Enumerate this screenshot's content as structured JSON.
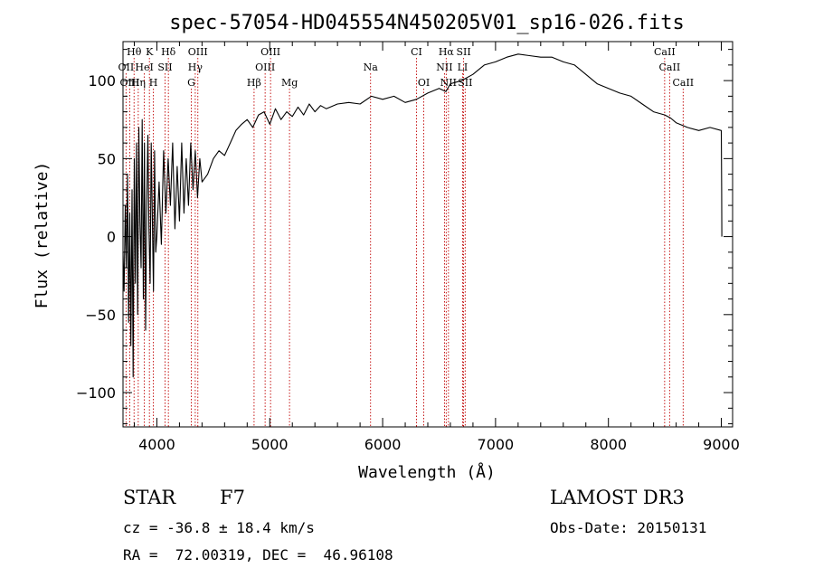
{
  "chart_data": {
    "type": "line",
    "title": "spec-57054-HD045554N450205V01_sp16-026.fits",
    "xlabel": "Wavelength (Å)",
    "ylabel": "Flux (relative)",
    "xlim": [
      3700,
      9100
    ],
    "ylim": [
      -122,
      125
    ],
    "xticks": [
      4000,
      5000,
      6000,
      7000,
      8000,
      9000
    ],
    "yticks": [
      -100,
      -50,
      0,
      50,
      100
    ],
    "series": [
      {
        "name": "flux",
        "x": [
          3700,
          3710,
          3720,
          3730,
          3740,
          3750,
          3760,
          3770,
          3780,
          3790,
          3800,
          3810,
          3820,
          3830,
          3840,
          3850,
          3860,
          3870,
          3880,
          3890,
          3900,
          3910,
          3920,
          3930,
          3940,
          3950,
          3960,
          3970,
          3980,
          3990,
          4000,
          4020,
          4040,
          4060,
          4080,
          4100,
          4120,
          4140,
          4160,
          4180,
          4200,
          4220,
          4240,
          4260,
          4280,
          4300,
          4320,
          4340,
          4360,
          4380,
          4400,
          4450,
          4500,
          4550,
          4600,
          4650,
          4700,
          4750,
          4800,
          4850,
          4900,
          4950,
          5000,
          5050,
          5100,
          5150,
          5200,
          5250,
          5300,
          5350,
          5400,
          5450,
          5500,
          5600,
          5700,
          5800,
          5900,
          6000,
          6100,
          6200,
          6300,
          6400,
          6500,
          6560,
          6600,
          6700,
          6800,
          6900,
          7000,
          7100,
          7200,
          7300,
          7400,
          7500,
          7600,
          7700,
          7800,
          7900,
          8000,
          8100,
          8200,
          8300,
          8400,
          8500,
          8550,
          8600,
          8700,
          8800,
          8900,
          9000,
          9003,
          9005
        ],
        "y": [
          -10,
          -35,
          20,
          -20,
          40,
          -55,
          15,
          -70,
          30,
          -90,
          50,
          -30,
          60,
          -50,
          70,
          10,
          -20,
          75,
          -40,
          60,
          -60,
          20,
          65,
          5,
          -30,
          60,
          10,
          -35,
          55,
          -10,
          0,
          35,
          -5,
          55,
          15,
          50,
          20,
          60,
          5,
          45,
          10,
          60,
          15,
          50,
          20,
          60,
          30,
          55,
          25,
          50,
          35,
          40,
          50,
          55,
          52,
          60,
          68,
          72,
          75,
          70,
          78,
          80,
          72,
          82,
          75,
          80,
          77,
          83,
          78,
          85,
          80,
          84,
          82,
          85,
          86,
          85,
          90,
          88,
          90,
          86,
          88,
          92,
          95,
          93,
          98,
          100,
          104,
          110,
          112,
          115,
          117,
          116,
          115,
          115,
          112,
          110,
          104,
          98,
          95,
          92,
          90,
          85,
          80,
          78,
          76,
          73,
          70,
          68,
          70,
          68,
          30,
          0
        ]
      }
    ],
    "lines": [
      {
        "label": "Hθ",
        "x": 3798,
        "row": 1
      },
      {
        "label": "K",
        "x": 3934,
        "row": 1
      },
      {
        "label": "Hδ",
        "x": 4102,
        "row": 1
      },
      {
        "label": "OIII",
        "x": 4363,
        "row": 1
      },
      {
        "label": "OIII",
        "x": 5007,
        "row": 1
      },
      {
        "label": "CI",
        "x": 6300,
        "row": 1
      },
      {
        "label": "Hα",
        "x": 6563,
        "row": 1
      },
      {
        "label": "SII",
        "x": 6717,
        "row": 1
      },
      {
        "label": "CaII",
        "x": 8498,
        "row": 1
      },
      {
        "label": "OII",
        "x": 3727,
        "row": 2
      },
      {
        "label": "HeI",
        "x": 3889,
        "row": 2
      },
      {
        "label": "SII",
        "x": 4072,
        "row": 2
      },
      {
        "label": "Hγ",
        "x": 4340,
        "row": 2
      },
      {
        "label": "OIII",
        "x": 4959,
        "row": 2
      },
      {
        "label": "Na",
        "x": 5893,
        "row": 2
      },
      {
        "label": "NII",
        "x": 6548,
        "row": 2
      },
      {
        "label": "LI",
        "x": 6708,
        "row": 2
      },
      {
        "label": "CaII",
        "x": 8542,
        "row": 2
      },
      {
        "label": "OIII",
        "x": 3760,
        "row": 3
      },
      {
        "label": "Hη",
        "x": 3835,
        "row": 3
      },
      {
        "label": "H",
        "x": 3969,
        "row": 3
      },
      {
        "label": "G",
        "x": 4305,
        "row": 3
      },
      {
        "label": "Hβ",
        "x": 4861,
        "row": 3
      },
      {
        "label": "Mg",
        "x": 5175,
        "row": 3
      },
      {
        "label": "OI",
        "x": 6364,
        "row": 3
      },
      {
        "label": "NII",
        "x": 6583,
        "row": 3
      },
      {
        "label": "SII",
        "x": 6731,
        "row": 3
      },
      {
        "label": "CaII",
        "x": 8662,
        "row": 3
      }
    ]
  },
  "info": {
    "class_label": "STAR",
    "subclass": "F7",
    "survey": "LAMOST DR3",
    "cz": "cz = -36.8 ± 18.4 km/s",
    "obs_date": "Obs-Date: 20150131",
    "coords": "RA =  72.00319, DEC =  46.96108"
  }
}
